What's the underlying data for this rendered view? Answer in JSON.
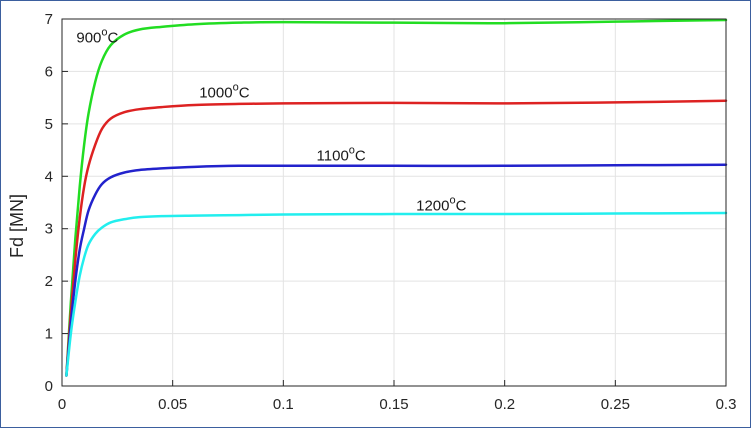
{
  "chart_data": {
    "type": "line",
    "title": "",
    "xlabel": "",
    "ylabel": "Fd [MN]",
    "xlim": [
      0,
      0.3
    ],
    "ylim": [
      0,
      7
    ],
    "xticks": [
      0,
      0.05,
      0.1,
      0.15,
      0.2,
      0.25,
      0.3
    ],
    "xtick_labels": [
      "0",
      "0.05",
      "0.1",
      "0.15",
      "0.2",
      "0.25",
      "0.3"
    ],
    "yticks": [
      0,
      1,
      2,
      3,
      4,
      5,
      6,
      7
    ],
    "ytick_labels": [
      "0",
      "1",
      "2",
      "3",
      "4",
      "5",
      "6",
      "7"
    ],
    "grid": true,
    "legend": "none",
    "series": [
      {
        "color": "#22dd22",
        "label": {
          "base": "900",
          "sup": "o",
          "unit": "C",
          "at": [
            0.0065,
            6.55
          ]
        },
        "points": [
          [
            0.002,
            0.2
          ],
          [
            0.004,
            1.6
          ],
          [
            0.006,
            2.8
          ],
          [
            0.008,
            3.8
          ],
          [
            0.01,
            4.6
          ],
          [
            0.012,
            5.2
          ],
          [
            0.015,
            5.8
          ],
          [
            0.018,
            6.2
          ],
          [
            0.022,
            6.5
          ],
          [
            0.028,
            6.7
          ],
          [
            0.035,
            6.8
          ],
          [
            0.045,
            6.85
          ],
          [
            0.06,
            6.9
          ],
          [
            0.08,
            6.93
          ],
          [
            0.1,
            6.94
          ],
          [
            0.15,
            6.93
          ],
          [
            0.2,
            6.92
          ],
          [
            0.25,
            6.95
          ],
          [
            0.3,
            6.98
          ]
        ]
      },
      {
        "color": "#dd2222",
        "label": {
          "base": "1000",
          "sup": "o",
          "unit": "C",
          "at": [
            0.062,
            5.5
          ]
        },
        "points": [
          [
            0.002,
            0.2
          ],
          [
            0.004,
            1.4
          ],
          [
            0.006,
            2.4
          ],
          [
            0.008,
            3.2
          ],
          [
            0.01,
            3.8
          ],
          [
            0.012,
            4.2
          ],
          [
            0.015,
            4.6
          ],
          [
            0.018,
            4.9
          ],
          [
            0.022,
            5.1
          ],
          [
            0.028,
            5.22
          ],
          [
            0.035,
            5.28
          ],
          [
            0.045,
            5.32
          ],
          [
            0.06,
            5.36
          ],
          [
            0.08,
            5.38
          ],
          [
            0.1,
            5.39
          ],
          [
            0.15,
            5.4
          ],
          [
            0.2,
            5.39
          ],
          [
            0.25,
            5.41
          ],
          [
            0.3,
            5.44
          ]
        ]
      },
      {
        "color": "#2222cc",
        "label": {
          "base": "1100",
          "sup": "o",
          "unit": "C",
          "at": [
            0.115,
            4.3
          ]
        },
        "points": [
          [
            0.002,
            0.2
          ],
          [
            0.004,
            1.2
          ],
          [
            0.006,
            2.0
          ],
          [
            0.008,
            2.6
          ],
          [
            0.01,
            3.0
          ],
          [
            0.012,
            3.35
          ],
          [
            0.015,
            3.65
          ],
          [
            0.018,
            3.85
          ],
          [
            0.022,
            3.98
          ],
          [
            0.028,
            4.07
          ],
          [
            0.035,
            4.12
          ],
          [
            0.045,
            4.15
          ],
          [
            0.06,
            4.18
          ],
          [
            0.08,
            4.2
          ],
          [
            0.1,
            4.2
          ],
          [
            0.15,
            4.2
          ],
          [
            0.2,
            4.2
          ],
          [
            0.25,
            4.21
          ],
          [
            0.3,
            4.22
          ]
        ]
      },
      {
        "color": "#22eeee",
        "label": {
          "base": "1200",
          "sup": "o",
          "unit": "C",
          "at": [
            0.16,
            3.35
          ]
        },
        "points": [
          [
            0.002,
            0.2
          ],
          [
            0.004,
            1.0
          ],
          [
            0.006,
            1.6
          ],
          [
            0.008,
            2.1
          ],
          [
            0.01,
            2.45
          ],
          [
            0.012,
            2.7
          ],
          [
            0.015,
            2.9
          ],
          [
            0.018,
            3.02
          ],
          [
            0.022,
            3.12
          ],
          [
            0.028,
            3.18
          ],
          [
            0.035,
            3.22
          ],
          [
            0.045,
            3.24
          ],
          [
            0.06,
            3.25
          ],
          [
            0.08,
            3.26
          ],
          [
            0.1,
            3.27
          ],
          [
            0.15,
            3.28
          ],
          [
            0.2,
            3.28
          ],
          [
            0.25,
            3.29
          ],
          [
            0.3,
            3.3
          ]
        ]
      }
    ]
  }
}
